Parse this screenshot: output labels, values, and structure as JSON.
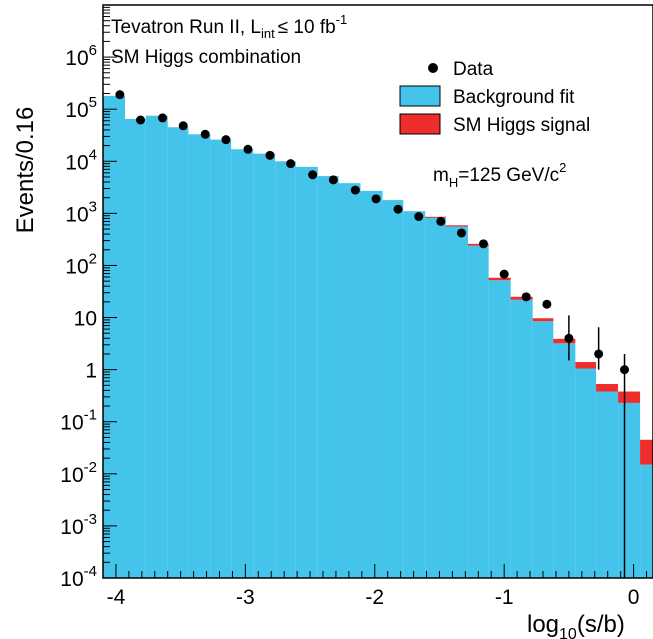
{
  "chart_data": {
    "type": "histogram",
    "title_lines": [
      "Tevatron Run II, L",
      "SM Higgs combination"
    ],
    "lumi_subscript": "int",
    "lumi_relation": "≤ 10 fb",
    "lumi_exponent": "-1",
    "mass_label": "m",
    "mass_subscript": "H",
    "mass_value": "=125 GeV/c",
    "mass_exponent": "2",
    "xlabel": "log",
    "xlabel_subscript": "10",
    "xlabel_suffix": "(s/b)",
    "ylabel": "Events/0.16",
    "xlim": [
      -4.1,
      0.15
    ],
    "ylim_log10": [
      -4,
      7
    ],
    "y_scale": "log",
    "legend_position": "top-right",
    "legend": {
      "data": "Data",
      "background": "Background fit",
      "signal": "SM Higgs signal"
    },
    "colors": {
      "background": "#44c4ea",
      "signal": "#ee2d2d",
      "data": "#000000"
    },
    "x_ticks": [
      {
        "value": -4,
        "label": "-4"
      },
      {
        "value": -3,
        "label": "-3"
      },
      {
        "value": -2,
        "label": "-2"
      },
      {
        "value": -1,
        "label": "-1"
      },
      {
        "value": 0,
        "label": "0"
      }
    ],
    "y_ticks": [
      {
        "exp": -4,
        "base": "10",
        "sup": "-4"
      },
      {
        "exp": -3,
        "base": "10",
        "sup": "-3"
      },
      {
        "exp": -2,
        "base": "10",
        "sup": "-2"
      },
      {
        "exp": -1,
        "base": "10",
        "sup": "-1"
      },
      {
        "exp": 0,
        "base": "1",
        "sup": ""
      },
      {
        "exp": 1,
        "base": "10",
        "sup": ""
      },
      {
        "exp": 2,
        "base": "10",
        "sup": "2"
      },
      {
        "exp": 3,
        "base": "10",
        "sup": "3"
      },
      {
        "exp": 4,
        "base": "10",
        "sup": "4"
      },
      {
        "exp": 5,
        "base": "10",
        "sup": "5"
      },
      {
        "exp": 6,
        "base": "10",
        "sup": "6"
      }
    ],
    "bins": [
      {
        "lo": -4.1,
        "hi": -3.93,
        "background": 180000,
        "signal": 0
      },
      {
        "lo": -3.93,
        "hi": -3.77,
        "background": 65000,
        "signal": 0
      },
      {
        "lo": -3.77,
        "hi": -3.6,
        "background": 75000,
        "signal": 0
      },
      {
        "lo": -3.6,
        "hi": -3.44,
        "background": 45000,
        "signal": 0
      },
      {
        "lo": -3.44,
        "hi": -3.27,
        "background": 33000,
        "signal": 0
      },
      {
        "lo": -3.27,
        "hi": -3.11,
        "background": 26000,
        "signal": 0
      },
      {
        "lo": -3.11,
        "hi": -2.94,
        "background": 17000,
        "signal": 0
      },
      {
        "lo": -2.94,
        "hi": -2.77,
        "background": 14000,
        "signal": 0
      },
      {
        "lo": -2.77,
        "hi": -2.61,
        "background": 10000,
        "signal": 0
      },
      {
        "lo": -2.61,
        "hi": -2.44,
        "background": 7800,
        "signal": 0
      },
      {
        "lo": -2.44,
        "hi": -2.28,
        "background": 5200,
        "signal": 0
      },
      {
        "lo": -2.28,
        "hi": -2.11,
        "background": 3800,
        "signal": 0
      },
      {
        "lo": -2.11,
        "hi": -1.94,
        "background": 2700,
        "signal": 0
      },
      {
        "lo": -1.94,
        "hi": -1.78,
        "background": 1800,
        "signal": 0
      },
      {
        "lo": -1.78,
        "hi": -1.61,
        "background": 1100,
        "signal": 0
      },
      {
        "lo": -1.61,
        "hi": -1.45,
        "background": 830,
        "signal": 30
      },
      {
        "lo": -1.45,
        "hi": -1.28,
        "background": 560,
        "signal": 30
      },
      {
        "lo": -1.28,
        "hi": -1.12,
        "background": 240,
        "signal": 20
      },
      {
        "lo": -1.12,
        "hi": -0.95,
        "background": 52,
        "signal": 6
      },
      {
        "lo": -0.95,
        "hi": -0.78,
        "background": 22,
        "signal": 3
      },
      {
        "lo": -0.78,
        "hi": -0.62,
        "background": 8.5,
        "signal": 1.2
      },
      {
        "lo": -0.62,
        "hi": -0.45,
        "background": 3.2,
        "signal": 0.7
      },
      {
        "lo": -0.45,
        "hi": -0.29,
        "background": 1.05,
        "signal": 0.35
      },
      {
        "lo": -0.29,
        "hi": -0.12,
        "background": 0.38,
        "signal": 0.15
      },
      {
        "lo": -0.12,
        "hi": 0.05,
        "background": 0.23,
        "signal": 0.15
      },
      {
        "lo": 0.05,
        "hi": 0.15,
        "background": 0.015,
        "signal": 0.03
      }
    ],
    "data_points": [
      {
        "x": -3.97,
        "y": 190000,
        "err_lo": 0,
        "err_hi": 0
      },
      {
        "x": -3.81,
        "y": 62000,
        "err_lo": 0,
        "err_hi": 0
      },
      {
        "x": -3.64,
        "y": 68000,
        "err_lo": 0,
        "err_hi": 0
      },
      {
        "x": -3.48,
        "y": 48000,
        "err_lo": 0,
        "err_hi": 0
      },
      {
        "x": -3.31,
        "y": 33000,
        "err_lo": 0,
        "err_hi": 0
      },
      {
        "x": -3.15,
        "y": 26000,
        "err_lo": 0,
        "err_hi": 0
      },
      {
        "x": -2.98,
        "y": 17000,
        "err_lo": 0,
        "err_hi": 0
      },
      {
        "x": -2.81,
        "y": 13000,
        "err_lo": 0,
        "err_hi": 0
      },
      {
        "x": -2.65,
        "y": 9000,
        "err_lo": 0,
        "err_hi": 0
      },
      {
        "x": -2.48,
        "y": 5500,
        "err_lo": 0,
        "err_hi": 0
      },
      {
        "x": -2.32,
        "y": 4400,
        "err_lo": 0,
        "err_hi": 0
      },
      {
        "x": -2.15,
        "y": 2800,
        "err_lo": 0,
        "err_hi": 0
      },
      {
        "x": -1.99,
        "y": 1900,
        "err_lo": 0,
        "err_hi": 0
      },
      {
        "x": -1.82,
        "y": 1200,
        "err_lo": 0,
        "err_hi": 0
      },
      {
        "x": -1.66,
        "y": 870,
        "err_lo": 0,
        "err_hi": 0
      },
      {
        "x": -1.49,
        "y": 700,
        "err_lo": 0,
        "err_hi": 0
      },
      {
        "x": -1.33,
        "y": 420,
        "err_lo": 0,
        "err_hi": 0
      },
      {
        "x": -1.16,
        "y": 260,
        "err_lo": 0,
        "err_hi": 0
      },
      {
        "x": -1.0,
        "y": 68,
        "err_lo": 0,
        "err_hi": 0
      },
      {
        "x": -0.83,
        "y": 25,
        "err_lo": 0,
        "err_hi": 0
      },
      {
        "x": -0.67,
        "y": 18,
        "err_lo": 0,
        "err_hi": 0
      },
      {
        "x": -0.5,
        "y": 4,
        "err_lo": 2.5,
        "err_hi": 7
      },
      {
        "x": -0.27,
        "y": 2,
        "err_lo": 1.0,
        "err_hi": 4.5
      },
      {
        "x": -0.07,
        "y": 1,
        "err_lo": 1.0,
        "err_hi": 1.0
      }
    ]
  }
}
